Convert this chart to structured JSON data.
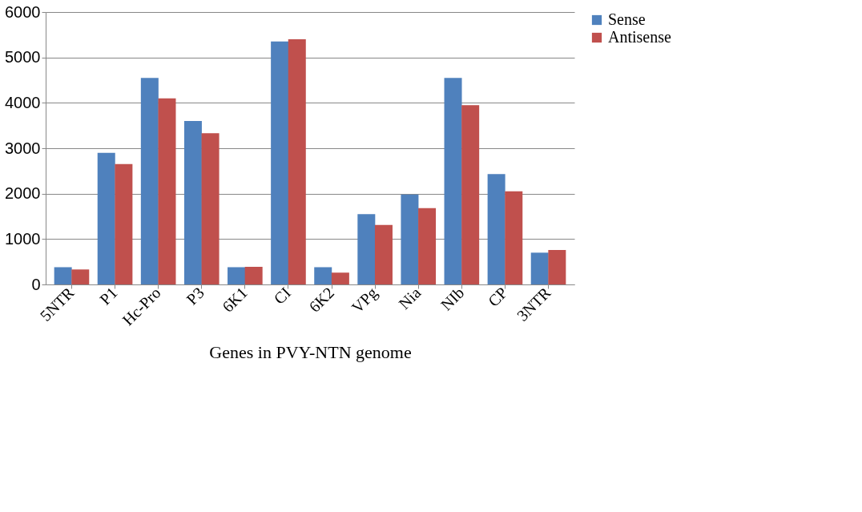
{
  "chart_data": {
    "type": "bar",
    "xlabel": "Genes in PVY-NTN genome",
    "categories": [
      "5NTR",
      "P1",
      "Hc-Pro",
      "P3",
      "6K1",
      "CI",
      "6K2",
      "VPg",
      "Nia",
      "NIb",
      "CP",
      "3NTR"
    ],
    "series": [
      {
        "name": "Sense",
        "color": "#4f81bd",
        "values": [
          380,
          2900,
          4550,
          3600,
          380,
          5350,
          380,
          1550,
          1980,
          4550,
          2430,
          700
        ]
      },
      {
        "name": "Antisense",
        "color": "#c0504d",
        "values": [
          330,
          2650,
          4100,
          3330,
          390,
          5400,
          260,
          1310,
          1680,
          3950,
          2050,
          760
        ]
      }
    ],
    "ylim": [
      0,
      6000
    ],
    "yticks": [
      0,
      1000,
      2000,
      3000,
      4000,
      5000,
      6000
    ],
    "grid": "y",
    "legend": "right"
  }
}
